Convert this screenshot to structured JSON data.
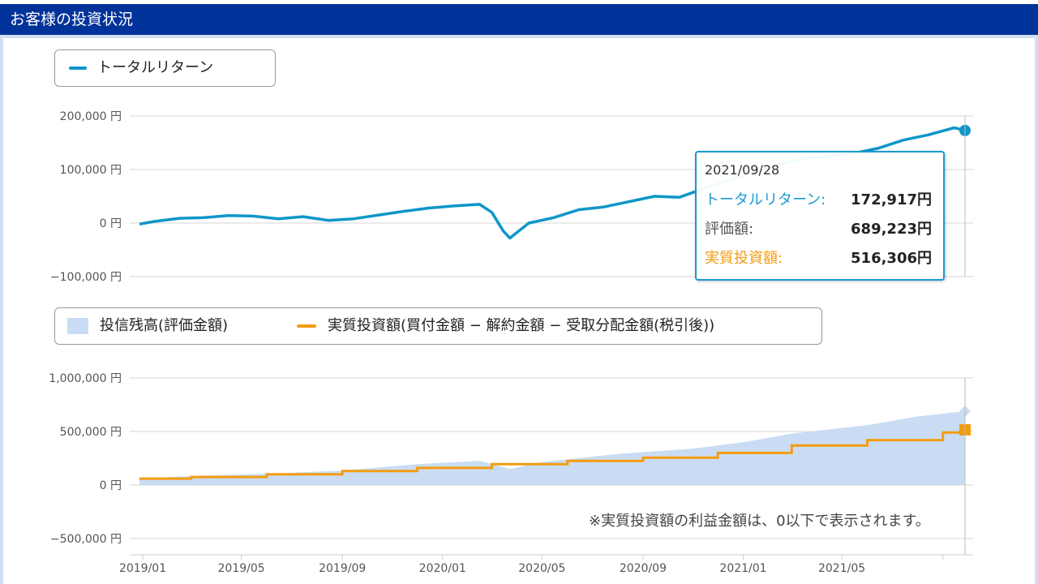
{
  "header": {
    "title": "お客様の投資状況"
  },
  "colors": {
    "header_bg": "#003399",
    "total_return": "#0e96c8",
    "balance_fill": "#c9dcf3",
    "investment": "#f39c12"
  },
  "legend_top": {
    "total_return": "トータルリターン"
  },
  "legend_bottom": {
    "balance": "投信残高(評価金額)",
    "investment": "実質投資額(買付金額 − 解約金額 − 受取分配金額(税引後))"
  },
  "tooltip": {
    "date": "2021/09/28",
    "rows": [
      {
        "label": "トータルリターン:",
        "value": "172,917円"
      },
      {
        "label": "評価額:",
        "value": "689,223円"
      },
      {
        "label": "実質投資額:",
        "value": "516,306円"
      }
    ]
  },
  "note": "※実質投資額の利益金額は、0以下で表示されます。",
  "chart_data": [
    {
      "type": "line",
      "series": [
        {
          "name": "トータルリターン",
          "x": [
            "2018/12/28",
            "2019/01/15",
            "2019/02/15",
            "2019/03/15",
            "2019/04/15",
            "2019/05/15",
            "2019/06/15",
            "2019/07/15",
            "2019/08/15",
            "2019/09/15",
            "2019/10/15",
            "2019/11/15",
            "2019/12/15",
            "2020/01/15",
            "2020/02/15",
            "2020/03/01",
            "2020/03/15",
            "2020/03/23",
            "2020/04/15",
            "2020/05/15",
            "2020/06/15",
            "2020/07/15",
            "2020/08/15",
            "2020/09/15",
            "2020/10/15",
            "2020/11/15",
            "2020/12/15",
            "2021/01/15",
            "2021/02/15",
            "2021/03/15",
            "2021/04/15",
            "2021/05/15",
            "2021/06/15",
            "2021/07/15",
            "2021/08/15",
            "2021/09/15",
            "2021/09/28"
          ],
          "values": [
            -2000,
            3000,
            9000,
            10000,
            14000,
            13000,
            8000,
            12000,
            5000,
            8000,
            15000,
            22000,
            28000,
            32000,
            35000,
            20000,
            -15000,
            -28000,
            0,
            10000,
            25000,
            30000,
            40000,
            50000,
            48000,
            65000,
            80000,
            95000,
            110000,
            120000,
            125000,
            130000,
            140000,
            155000,
            165000,
            178000,
            172917
          ]
        }
      ],
      "yticks": [
        "200,000 円",
        "100,000 円",
        "0 円",
        "−100,000 円"
      ],
      "ylim": [
        -100000,
        200000
      ]
    },
    {
      "type": "area",
      "series": [
        {
          "name": "投信残高(評価金額)",
          "x": [
            "2018/12/28",
            "2019/03/01",
            "2019/06/01",
            "2019/09/01",
            "2019/12/01",
            "2020/02/15",
            "2020/03/23",
            "2020/05/01",
            "2020/08/01",
            "2020/11/01",
            "2021/01/01",
            "2021/03/01",
            "2021/06/01",
            "2021/08/01",
            "2021/09/28"
          ],
          "values": [
            60000,
            85000,
            105000,
            135000,
            195000,
            225000,
            150000,
            215000,
            290000,
            340000,
            400000,
            480000,
            560000,
            640000,
            689223
          ]
        },
        {
          "name": "実質投資額(買付金額 − 解約金額 − 受取分配金額(税引後))",
          "x": [
            "2018/12/28",
            "2019/03/01",
            "2019/06/01",
            "2019/09/01",
            "2019/12/01",
            "2020/03/01",
            "2020/06/01",
            "2020/09/01",
            "2020/12/01",
            "2021/03/01",
            "2021/06/01",
            "2021/09/01",
            "2021/09/28"
          ],
          "values": [
            60000,
            75000,
            100000,
            130000,
            160000,
            195000,
            225000,
            255000,
            300000,
            370000,
            420000,
            490000,
            516306
          ]
        }
      ],
      "yticks": [
        "1,000,000 円",
        "500,000 円",
        "0 円",
        "−500,000 円"
      ],
      "ylim": [
        -500000,
        1000000
      ],
      "xticks": [
        "2019/01",
        "2019/05",
        "2019/09",
        "2020/01",
        "2020/05",
        "2020/09",
        "2021/01",
        "2021/05"
      ]
    }
  ]
}
